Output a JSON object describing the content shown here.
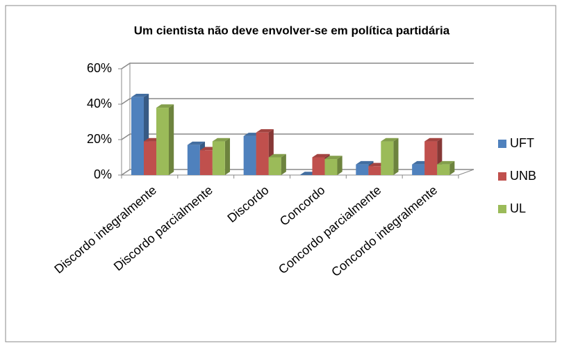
{
  "chart_data": {
    "type": "bar3d",
    "title": "Um cientista não deve envolver-se em política partidária",
    "categories": [
      "Discordo integralmente",
      "Discordo parcialmente",
      "Discordo",
      "Concordo",
      "Concordo parcialmente",
      "Concordo integralmente"
    ],
    "series": [
      {
        "name": "UFT",
        "color": "#4f81bd",
        "values": [
          44,
          17,
          22,
          0,
          6,
          6
        ]
      },
      {
        "name": "UNB",
        "color": "#c0504d",
        "values": [
          19,
          14,
          24,
          10,
          5,
          19
        ]
      },
      {
        "name": "UL",
        "color": "#9bbb59",
        "values": [
          38,
          19,
          10,
          9,
          19,
          6
        ]
      }
    ],
    "ylim": [
      0,
      60
    ],
    "yticks": [
      {
        "value": 0,
        "label": "0%"
      },
      {
        "value": 20,
        "label": "20%"
      },
      {
        "value": 40,
        "label": "40%"
      },
      {
        "value": 60,
        "label": "60%"
      }
    ],
    "grid": true,
    "legend": "right"
  }
}
